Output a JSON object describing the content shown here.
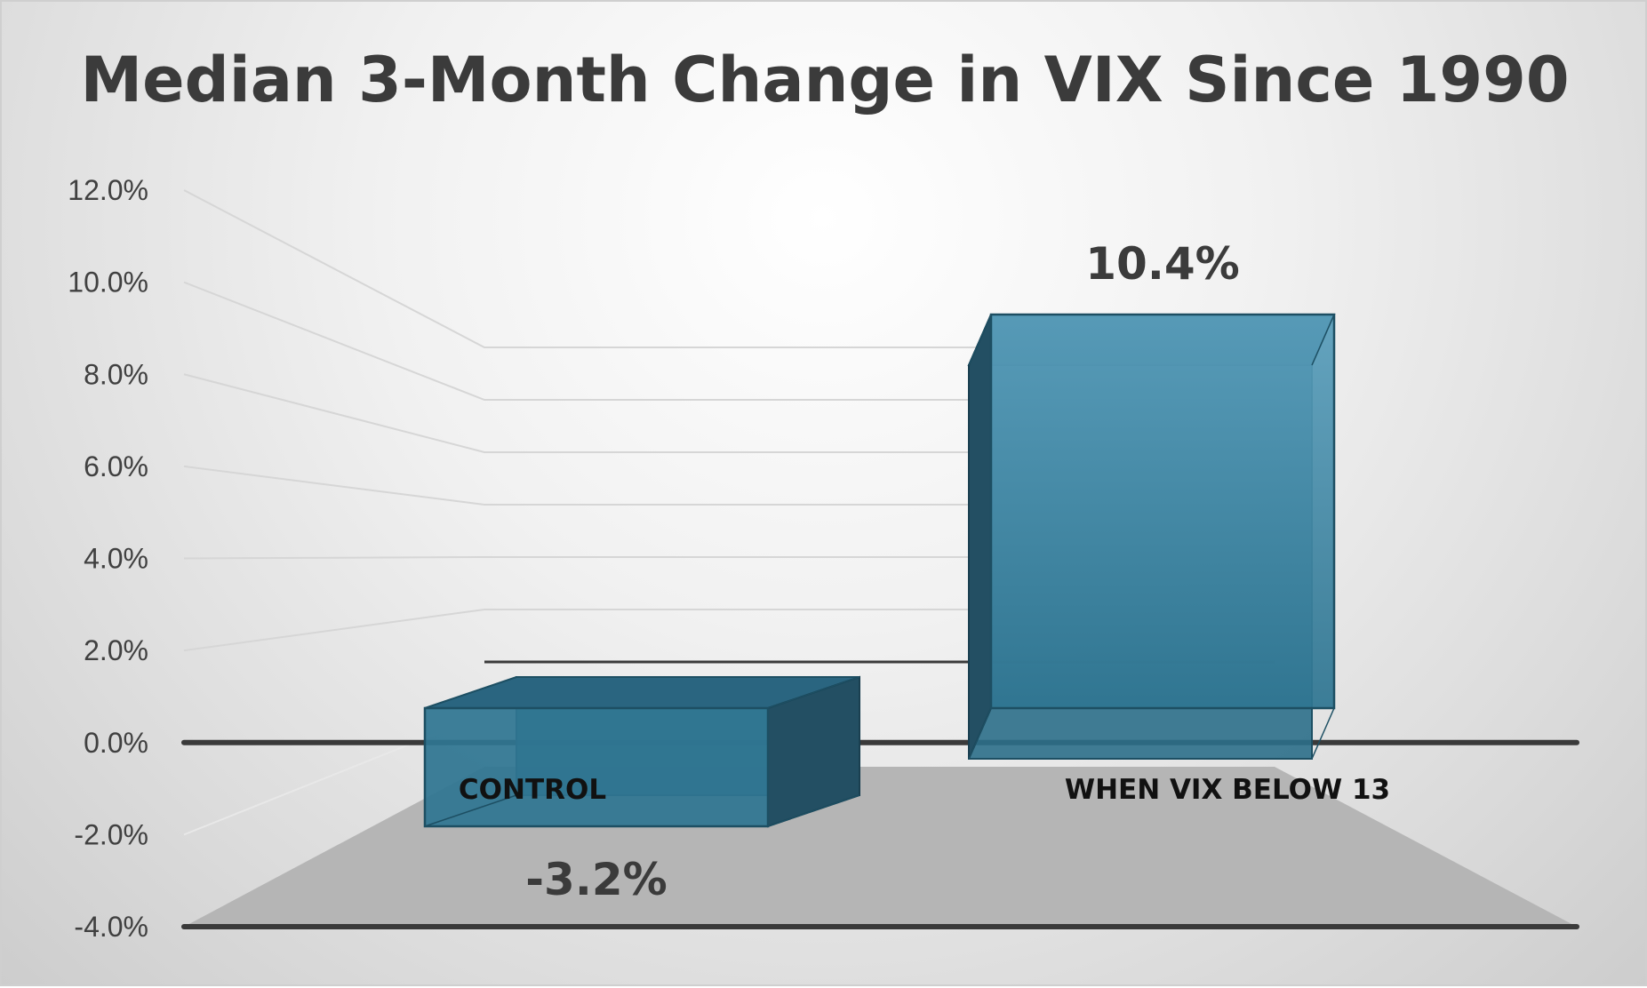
{
  "chart_data": {
    "type": "bar",
    "title": "Median 3-Month Change in VIX Since 1990",
    "categories": [
      "CONTROL",
      "WHEN VIX BELOW 13"
    ],
    "values": [
      -3.2,
      10.4
    ],
    "data_labels": [
      "-3.2%",
      "10.4%"
    ],
    "ylim": [
      -4,
      12
    ],
    "yticks": [
      "12.0%",
      "10.0%",
      "8.0%",
      "6.0%",
      "4.0%",
      "2.0%",
      "0.0%",
      "-2.0%",
      "-4.0%"
    ],
    "bar_color": "#2f7591",
    "grid": true,
    "legend": "none",
    "style": "3d-column"
  }
}
